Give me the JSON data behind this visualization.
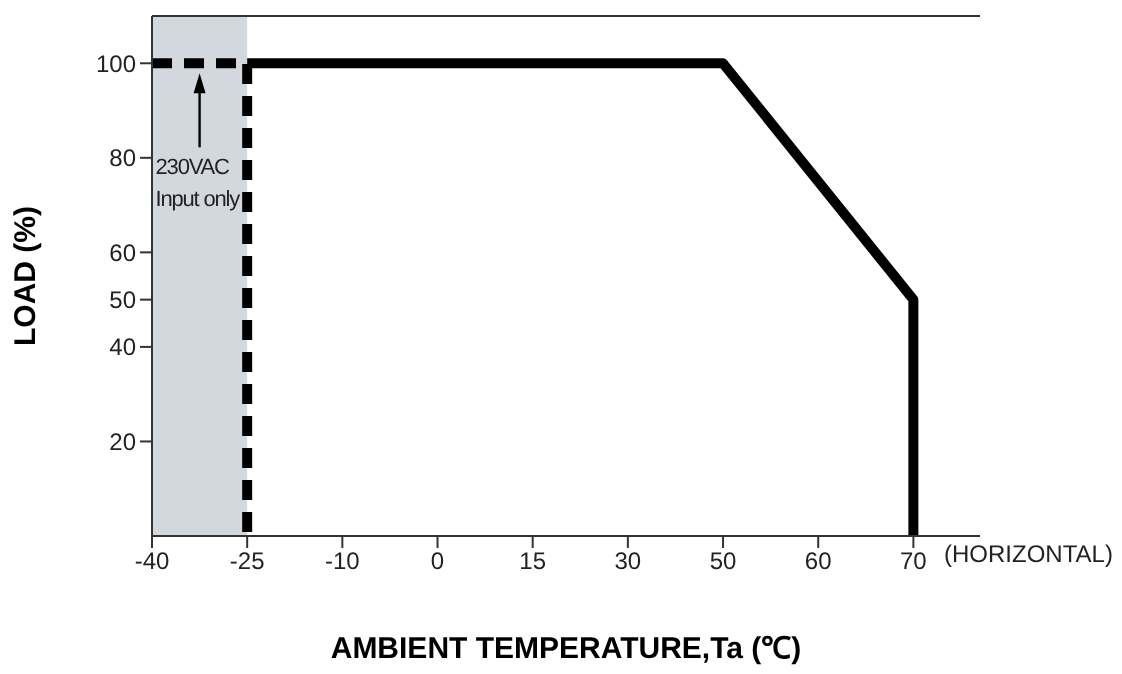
{
  "chart_data": {
    "type": "line",
    "xlabel": "AMBIENT TEMPERATURE,Ta (℃)",
    "ylabel": "LOAD (%)",
    "categories": [
      "-40",
      "-25",
      "-10",
      "0",
      "15",
      "30",
      "50",
      "60",
      "70"
    ],
    "series": [
      {
        "x": [
          "-25",
          "50",
          "70",
          "70"
        ],
        "values": [
          100,
          100,
          50,
          0
        ],
        "color": "#000000",
        "line_style": "solid"
      },
      {
        "x": [
          "-40",
          "-25",
          "-25"
        ],
        "values": [
          100,
          100,
          0
        ],
        "color": "#000000",
        "line_style": "dashed"
      }
    ],
    "bands": [
      {
        "axis": "x",
        "from": "-40",
        "to": "-25",
        "color": "#d3d8de",
        "label": "230VAC Input only"
      }
    ],
    "annotations": [
      "(HORIZONTAL)"
    ],
    "ylim": [
      0,
      110
    ],
    "yticks": [
      20,
      40,
      50,
      60,
      80,
      100
    ],
    "marker": "none"
  }
}
